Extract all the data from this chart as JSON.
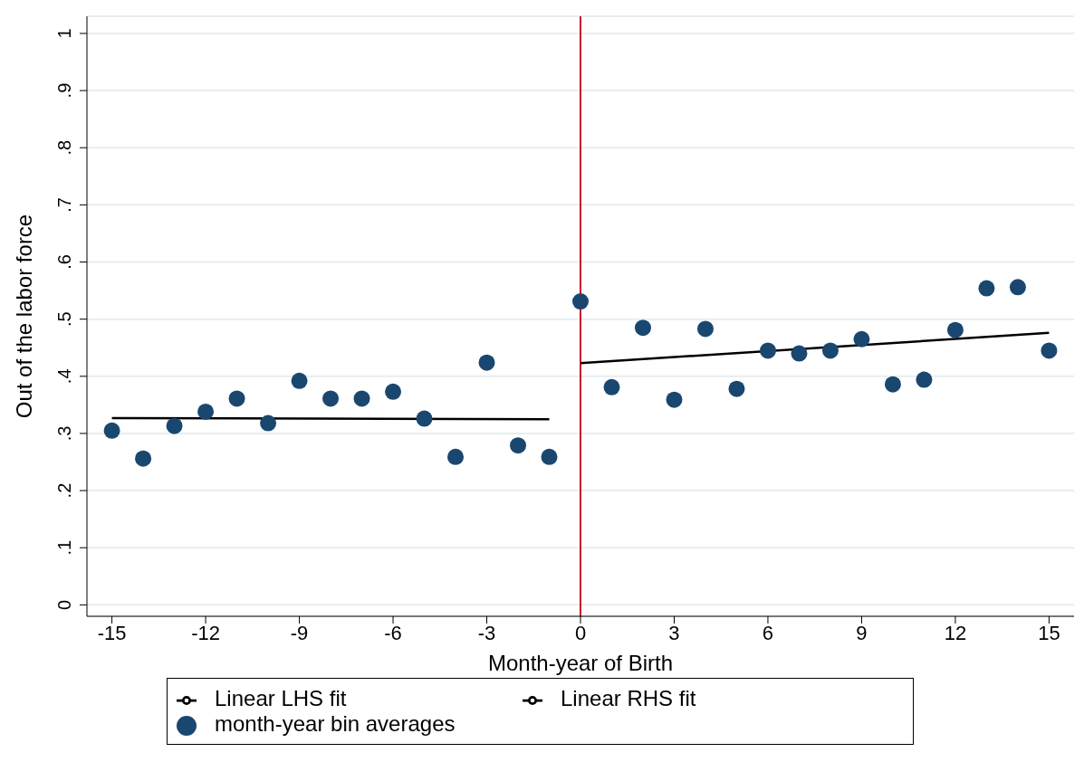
{
  "chart_data": {
    "type": "scatter",
    "xlabel": "Month-year of Birth",
    "ylabel": "Out of the labor force",
    "xlim": [
      -15.8,
      15.8
    ],
    "xticks": [
      -15,
      -12,
      -9,
      -6,
      -3,
      0,
      3,
      6,
      9,
      12,
      15
    ],
    "ylim": [
      -0.02,
      1.03
    ],
    "yticks": [
      0,
      {
        "value": 0.1,
        "label": ".1"
      },
      {
        "value": 0.2,
        "label": ".2"
      },
      {
        "value": 0.3,
        "label": ".3"
      },
      {
        "value": 0.4,
        "label": ".4"
      },
      {
        "value": 0.5,
        "label": ".5"
      },
      {
        "value": 0.6,
        "label": ".6"
      },
      {
        "value": 0.7,
        "label": ".7"
      },
      {
        "value": 0.8,
        "label": ".8"
      },
      {
        "value": 0.9,
        "label": ".9"
      },
      1
    ],
    "grid": "y",
    "legend": "bottom",
    "ref_lines": [
      {
        "axis": "x",
        "value": 0,
        "color": "#c8102e"
      }
    ],
    "series": [
      {
        "name": "month-year bin averages",
        "marker": "circle",
        "color": "#1a476f",
        "x": [
          -15,
          -14,
          -13,
          -12,
          -11,
          -10,
          -9,
          -8,
          -7,
          -6,
          -5,
          -4,
          -3,
          -2,
          -1,
          0,
          1,
          2,
          3,
          4,
          5,
          6,
          7,
          8,
          9,
          10,
          11,
          12,
          13,
          14,
          15
        ],
        "values": [
          0.305,
          0.256,
          0.313,
          0.338,
          0.361,
          0.318,
          0.392,
          0.361,
          0.361,
          0.373,
          0.326,
          0.259,
          0.424,
          0.279,
          0.259,
          0.531,
          0.381,
          0.485,
          0.359,
          0.483,
          0.378,
          0.445,
          0.44,
          0.445,
          0.465,
          0.386,
          0.394,
          0.481,
          0.554,
          0.556,
          0.445
        ]
      },
      {
        "name": "Linear RHS fit",
        "type": "line",
        "color": "#000000",
        "x": [
          0,
          15
        ],
        "values": [
          0.423,
          0.476
        ]
      },
      {
        "name": "Linear LHS fit",
        "type": "line",
        "color": "#000000",
        "x": [
          -15,
          -1
        ],
        "values": [
          0.327,
          0.325
        ]
      }
    ]
  }
}
